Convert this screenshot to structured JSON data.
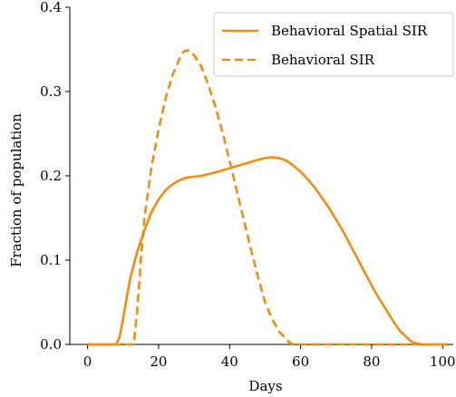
{
  "chart_data": {
    "type": "line",
    "title": "",
    "xlabel": "Days",
    "ylabel": "Fraction of population",
    "xlim": [
      -5,
      103
    ],
    "ylim": [
      0,
      0.4
    ],
    "x_ticks": [
      0,
      20,
      40,
      60,
      80,
      100
    ],
    "x_tick_labels": [
      "0",
      "20",
      "40",
      "60",
      "80",
      "100"
    ],
    "y_ticks": [
      0.0,
      0.1,
      0.2,
      0.3,
      0.4
    ],
    "y_tick_labels": [
      "0.0",
      "0.1",
      "0.2",
      "0.3",
      "0.4"
    ],
    "grid": false,
    "legend_position": "top-right",
    "color": "#f28c0f",
    "series": [
      {
        "name": "Behavioral Spatial SIR",
        "style": "solid",
        "points": [
          [
            0,
            0
          ],
          [
            8,
            0
          ],
          [
            9,
            0.008
          ],
          [
            10,
            0.03
          ],
          [
            11,
            0.055
          ],
          [
            12,
            0.078
          ],
          [
            14,
            0.11
          ],
          [
            16,
            0.135
          ],
          [
            18,
            0.157
          ],
          [
            20,
            0.172
          ],
          [
            22,
            0.183
          ],
          [
            24,
            0.19
          ],
          [
            26,
            0.195
          ],
          [
            28,
            0.198
          ],
          [
            32,
            0.2
          ],
          [
            36,
            0.204
          ],
          [
            40,
            0.209
          ],
          [
            44,
            0.214
          ],
          [
            48,
            0.219
          ],
          [
            50,
            0.221
          ],
          [
            52,
            0.222
          ],
          [
            54,
            0.221
          ],
          [
            56,
            0.218
          ],
          [
            58,
            0.212
          ],
          [
            60,
            0.205
          ],
          [
            62,
            0.196
          ],
          [
            64,
            0.186
          ],
          [
            66,
            0.174
          ],
          [
            68,
            0.162
          ],
          [
            70,
            0.148
          ],
          [
            72,
            0.134
          ],
          [
            74,
            0.118
          ],
          [
            76,
            0.102
          ],
          [
            78,
            0.086
          ],
          [
            80,
            0.07
          ],
          [
            82,
            0.055
          ],
          [
            84,
            0.042
          ],
          [
            86,
            0.028
          ],
          [
            88,
            0.016
          ],
          [
            90,
            0.008
          ],
          [
            91,
            0.004
          ],
          [
            92,
            0.002
          ],
          [
            93,
            0.001
          ],
          [
            94,
            0
          ],
          [
            101,
            0
          ]
        ]
      },
      {
        "name": "Behavioral SIR",
        "style": "dashed",
        "points": [
          [
            0,
            0
          ],
          [
            13,
            0
          ],
          [
            14,
            0.04
          ],
          [
            15,
            0.1
          ],
          [
            16,
            0.15
          ],
          [
            18,
            0.21
          ],
          [
            20,
            0.255
          ],
          [
            22,
            0.292
          ],
          [
            24,
            0.32
          ],
          [
            26,
            0.34
          ],
          [
            27,
            0.347
          ],
          [
            28,
            0.349
          ],
          [
            29,
            0.348
          ],
          [
            30,
            0.343
          ],
          [
            32,
            0.33
          ],
          [
            34,
            0.308
          ],
          [
            36,
            0.282
          ],
          [
            38,
            0.252
          ],
          [
            40,
            0.218
          ],
          [
            42,
            0.183
          ],
          [
            44,
            0.148
          ],
          [
            46,
            0.113
          ],
          [
            48,
            0.08
          ],
          [
            50,
            0.05
          ],
          [
            52,
            0.03
          ],
          [
            54,
            0.015
          ],
          [
            56,
            0.006
          ],
          [
            57,
            0.002
          ],
          [
            58,
            0
          ],
          [
            101,
            0
          ]
        ]
      }
    ]
  }
}
